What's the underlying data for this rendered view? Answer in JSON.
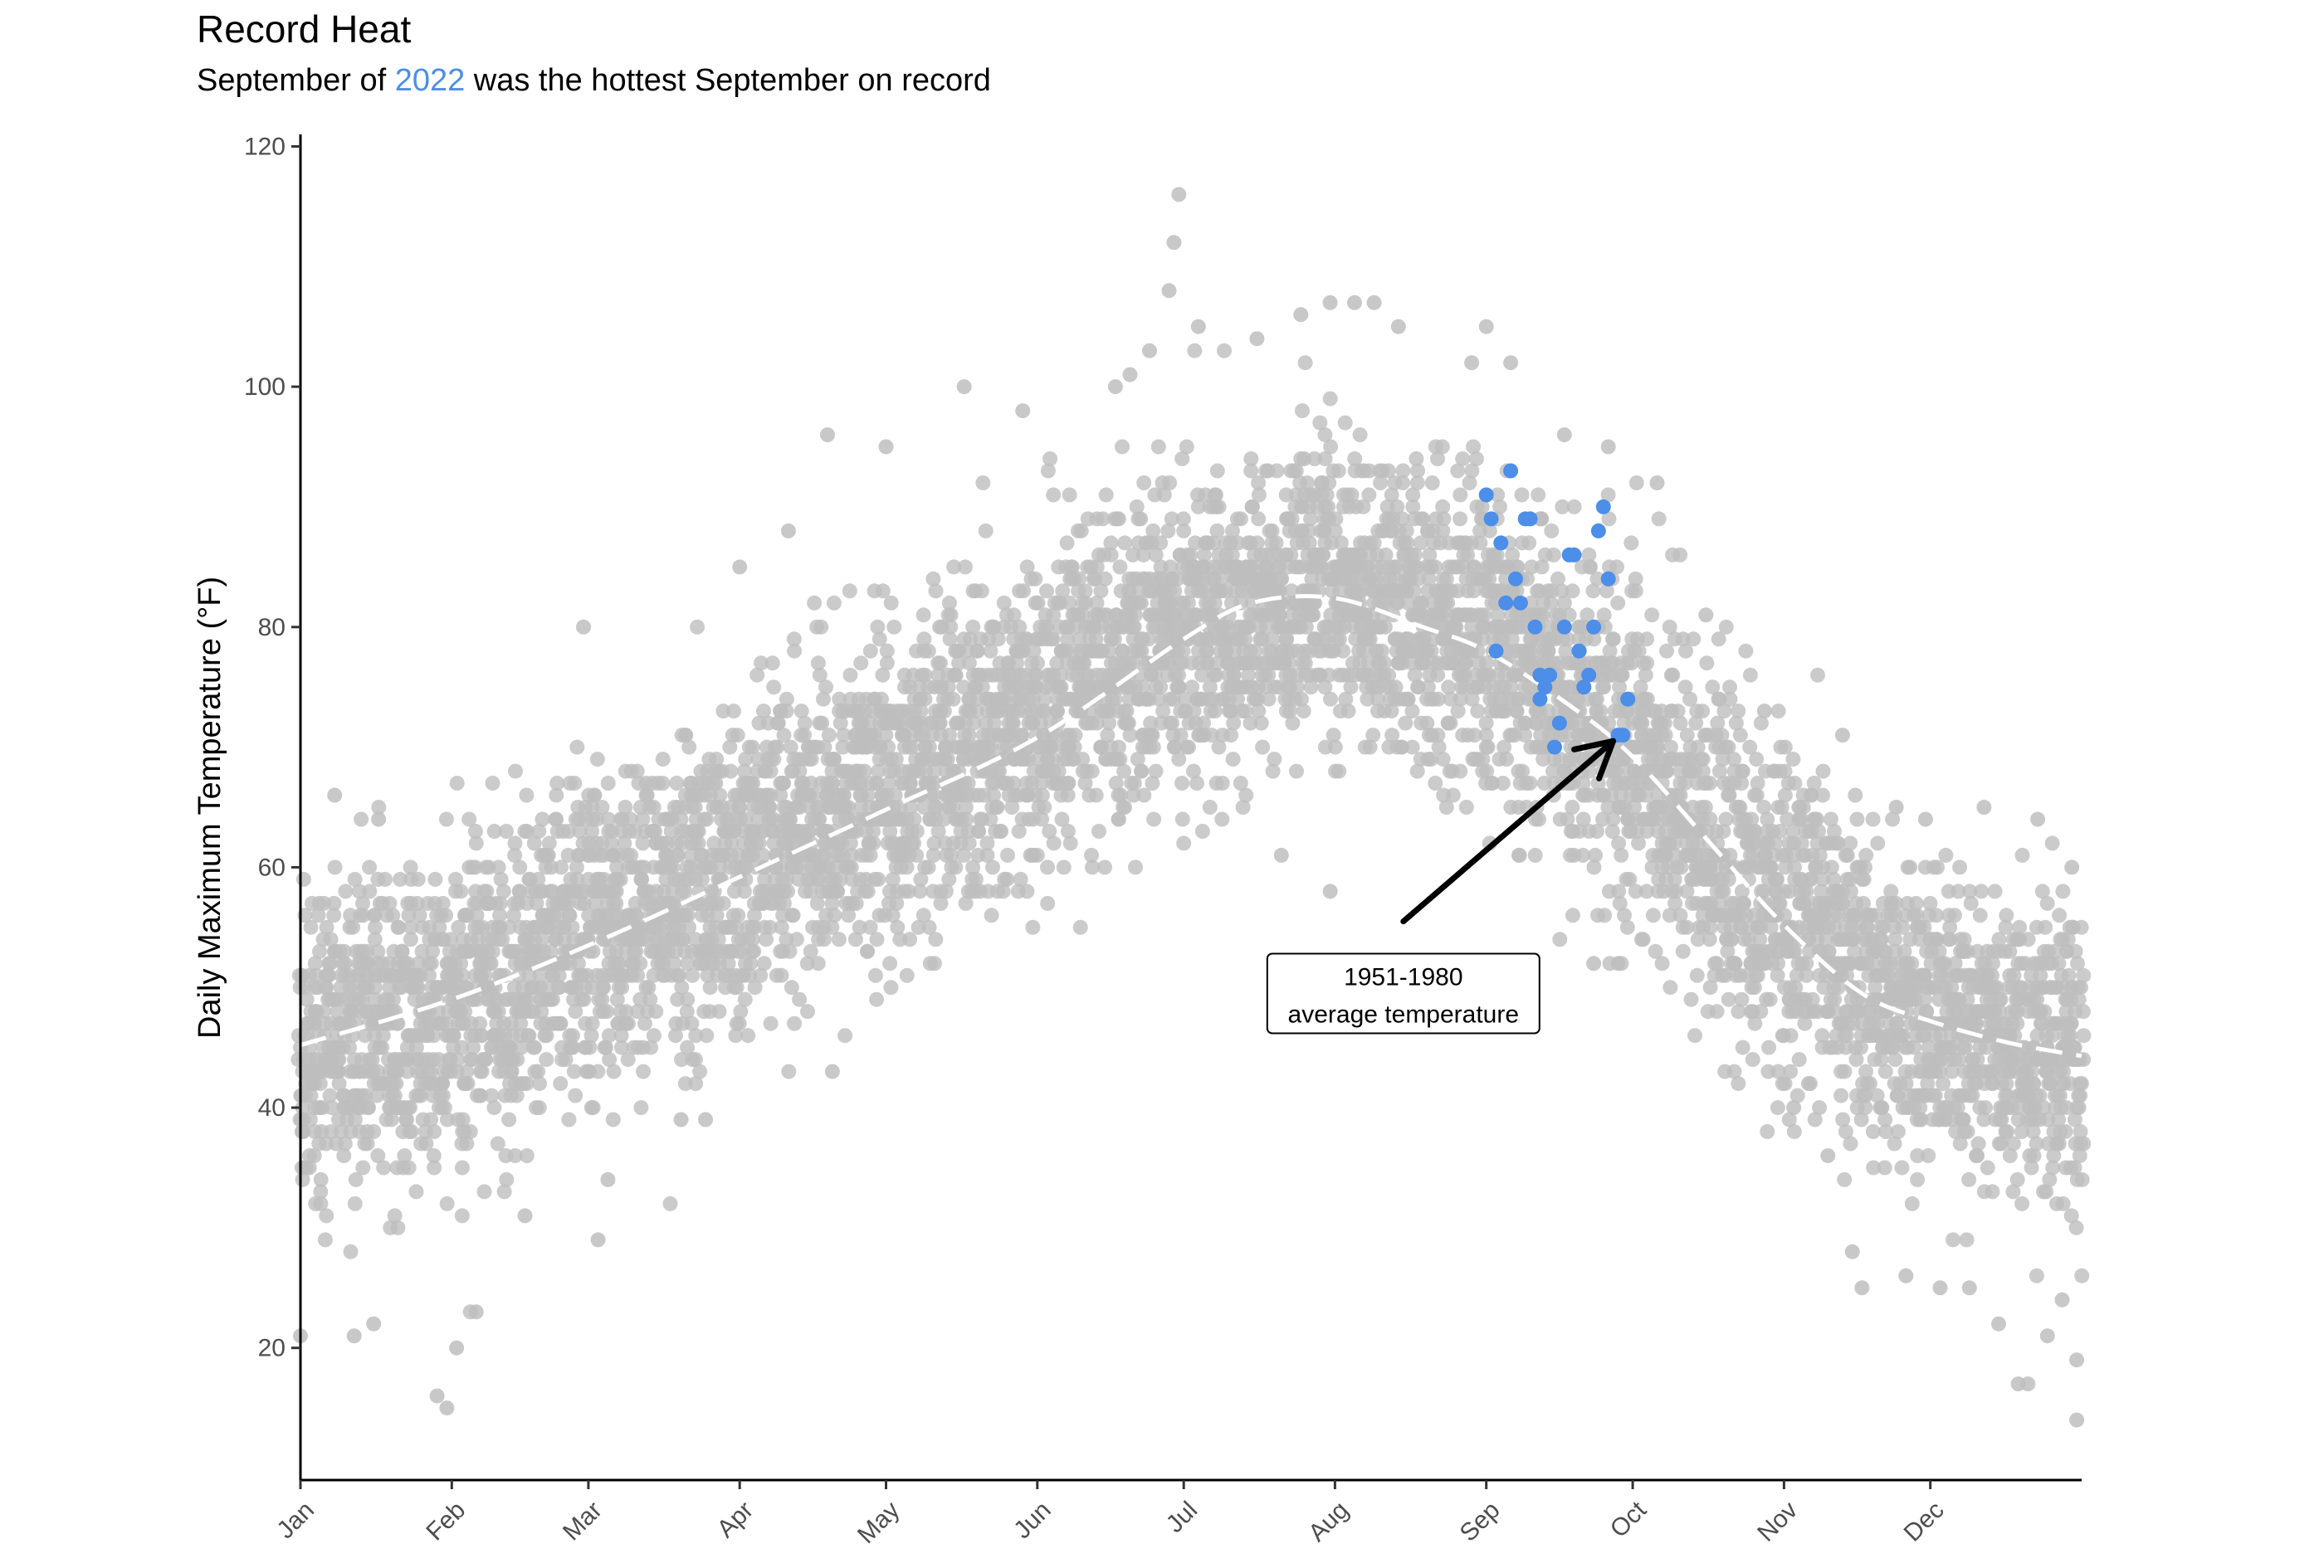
{
  "chart_data": {
    "type": "scatter",
    "title": "Record Heat",
    "subtitle": {
      "prefix": "September of ",
      "highlight": "2022",
      "suffix": " was the hottest September on record"
    },
    "xlabel": "",
    "ylabel": "Daily Maximum Temperature (°F)",
    "x_domain_days": [
      0,
      365
    ],
    "ylim": [
      9,
      121
    ],
    "y_ticks": [
      20,
      40,
      60,
      80,
      100,
      120
    ],
    "x_ticks": [
      {
        "label": "Jan",
        "day": 0
      },
      {
        "label": "Feb",
        "day": 31
      },
      {
        "label": "Mar",
        "day": 59
      },
      {
        "label": "Apr",
        "day": 90
      },
      {
        "label": "May",
        "day": 120
      },
      {
        "label": "Jun",
        "day": 151
      },
      {
        "label": "Jul",
        "day": 181
      },
      {
        "label": "Aug",
        "day": 212
      },
      {
        "label": "Sep",
        "day": 243
      },
      {
        "label": "Oct",
        "day": 273
      },
      {
        "label": "Nov",
        "day": 304
      },
      {
        "label": "Dec",
        "day": 334
      }
    ],
    "grid": false,
    "colors": {
      "historical": "#bebebe",
      "highlight": "#4c8ee8",
      "average_line": "#ffffff"
    },
    "average_line": {
      "name": "1951-1980 average temperature",
      "style": "dashed",
      "points": [
        {
          "day": 0,
          "temp": 45.2
        },
        {
          "day": 31,
          "temp": 49.0
        },
        {
          "day": 59,
          "temp": 53.5
        },
        {
          "day": 90,
          "temp": 59.2
        },
        {
          "day": 120,
          "temp": 64.8
        },
        {
          "day": 151,
          "temp": 70.8
        },
        {
          "day": 181,
          "temp": 79.0
        },
        {
          "day": 195,
          "temp": 82.0
        },
        {
          "day": 212,
          "temp": 82.4
        },
        {
          "day": 230,
          "temp": 80.0
        },
        {
          "day": 243,
          "temp": 78.0
        },
        {
          "day": 260,
          "temp": 73.5
        },
        {
          "day": 273,
          "temp": 69.2
        },
        {
          "day": 290,
          "temp": 61.5
        },
        {
          "day": 304,
          "temp": 55.2
        },
        {
          "day": 320,
          "temp": 49.5
        },
        {
          "day": 334,
          "temp": 47.2
        },
        {
          "day": 350,
          "temp": 45.4
        },
        {
          "day": 365,
          "temp": 44.3
        }
      ]
    },
    "historical_envelope": {
      "days": [
        0,
        31,
        59,
        90,
        120,
        151,
        181,
        212,
        243,
        273,
        304,
        334,
        365
      ],
      "center": [
        45,
        48,
        54,
        60,
        66,
        73,
        80,
        83,
        79,
        70,
        56,
        47,
        44
      ],
      "spread": [
        10,
        10,
        11,
        11,
        11,
        11,
        10,
        9,
        11,
        11,
        11,
        10,
        10
      ]
    },
    "extreme_points": [
      {
        "day": 167,
        "temp": 100
      },
      {
        "day": 170,
        "temp": 101
      },
      {
        "day": 174,
        "temp": 103
      },
      {
        "day": 178,
        "temp": 108
      },
      {
        "day": 179,
        "temp": 112
      },
      {
        "day": 180,
        "temp": 116
      },
      {
        "day": 184,
        "temp": 105
      },
      {
        "day": 196,
        "temp": 104
      },
      {
        "day": 205,
        "temp": 106
      },
      {
        "day": 211,
        "temp": 107
      },
      {
        "day": 216,
        "temp": 107
      },
      {
        "day": 220,
        "temp": 107
      },
      {
        "day": 225,
        "temp": 105
      },
      {
        "day": 243,
        "temp": 105
      },
      {
        "day": 240,
        "temp": 102
      },
      {
        "day": 248,
        "temp": 102
      },
      {
        "day": 259,
        "temp": 96
      },
      {
        "day": 268,
        "temp": 95
      },
      {
        "day": 278,
        "temp": 92
      },
      {
        "day": 288,
        "temp": 81
      },
      {
        "day": 300,
        "temp": 73
      },
      {
        "day": 316,
        "temp": 71
      },
      {
        "day": 327,
        "temp": 65
      },
      {
        "day": 333,
        "temp": 64
      },
      {
        "day": 345,
        "temp": 65
      },
      {
        "day": 356,
        "temp": 64
      },
      {
        "day": 363,
        "temp": 60
      },
      {
        "day": 7,
        "temp": 66
      },
      {
        "day": 16,
        "temp": 64
      },
      {
        "day": 58,
        "temp": 80
      },
      {
        "day": 90,
        "temp": 85
      },
      {
        "day": 100,
        "temp": 88
      },
      {
        "day": 108,
        "temp": 96
      },
      {
        "day": 120,
        "temp": 95
      },
      {
        "day": 136,
        "temp": 100
      },
      {
        "day": 148,
        "temp": 98
      },
      {
        "day": 0,
        "temp": 21
      },
      {
        "day": 11,
        "temp": 21
      },
      {
        "day": 15,
        "temp": 22
      },
      {
        "day": 28,
        "temp": 16
      },
      {
        "day": 30,
        "temp": 15
      },
      {
        "day": 32,
        "temp": 20
      },
      {
        "day": 36,
        "temp": 23
      },
      {
        "day": 46,
        "temp": 31
      },
      {
        "day": 61,
        "temp": 29
      },
      {
        "day": 63,
        "temp": 34
      },
      {
        "day": 78,
        "temp": 39
      },
      {
        "day": 83,
        "temp": 39
      },
      {
        "day": 109,
        "temp": 43
      },
      {
        "day": 211,
        "temp": 58
      },
      {
        "day": 201,
        "temp": 61
      },
      {
        "day": 265,
        "temp": 52
      },
      {
        "day": 270,
        "temp": 52
      },
      {
        "day": 318,
        "temp": 28
      },
      {
        "day": 320,
        "temp": 25
      },
      {
        "day": 329,
        "temp": 26
      },
      {
        "day": 336,
        "temp": 25
      },
      {
        "day": 342,
        "temp": 25
      },
      {
        "day": 348,
        "temp": 22
      },
      {
        "day": 352,
        "temp": 17
      },
      {
        "day": 354,
        "temp": 17
      },
      {
        "day": 358,
        "temp": 21
      },
      {
        "day": 361,
        "temp": 24
      },
      {
        "day": 364,
        "temp": 14
      },
      {
        "day": 364,
        "temp": 19
      },
      {
        "day": 313,
        "temp": 36
      },
      {
        "day": 306,
        "temp": 40
      }
    ],
    "series": [
      {
        "name": "2022",
        "points": [
          {
            "day": 243,
            "temp": 91
          },
          {
            "day": 244,
            "temp": 89
          },
          {
            "day": 245,
            "temp": 78
          },
          {
            "day": 246,
            "temp": 87
          },
          {
            "day": 247,
            "temp": 82
          },
          {
            "day": 248,
            "temp": 93
          },
          {
            "day": 249,
            "temp": 84
          },
          {
            "day": 250,
            "temp": 82
          },
          {
            "day": 251,
            "temp": 89
          },
          {
            "day": 252,
            "temp": 89
          },
          {
            "day": 253,
            "temp": 80
          },
          {
            "day": 254,
            "temp": 76
          },
          {
            "day": 254,
            "temp": 74
          },
          {
            "day": 255,
            "temp": 75
          },
          {
            "day": 256,
            "temp": 76
          },
          {
            "day": 257,
            "temp": 70
          },
          {
            "day": 258,
            "temp": 72
          },
          {
            "day": 259,
            "temp": 80
          },
          {
            "day": 260,
            "temp": 86
          },
          {
            "day": 261,
            "temp": 86
          },
          {
            "day": 262,
            "temp": 78
          },
          {
            "day": 263,
            "temp": 75
          },
          {
            "day": 264,
            "temp": 76
          },
          {
            "day": 265,
            "temp": 80
          },
          {
            "day": 266,
            "temp": 88
          },
          {
            "day": 267,
            "temp": 90
          },
          {
            "day": 268,
            "temp": 84
          },
          {
            "day": 270,
            "temp": 71
          },
          {
            "day": 271,
            "temp": 71
          },
          {
            "day": 272,
            "temp": 74
          }
        ]
      }
    ],
    "annotation": {
      "line1": "1951-1980",
      "line2": "average temperature",
      "box_center_day": 226,
      "box_center_temp": 49.5,
      "arrow_tail_day": 226,
      "arrow_tail_temp": 55.5,
      "arrow_head_day": 269,
      "arrow_head_temp": 70.5
    }
  }
}
